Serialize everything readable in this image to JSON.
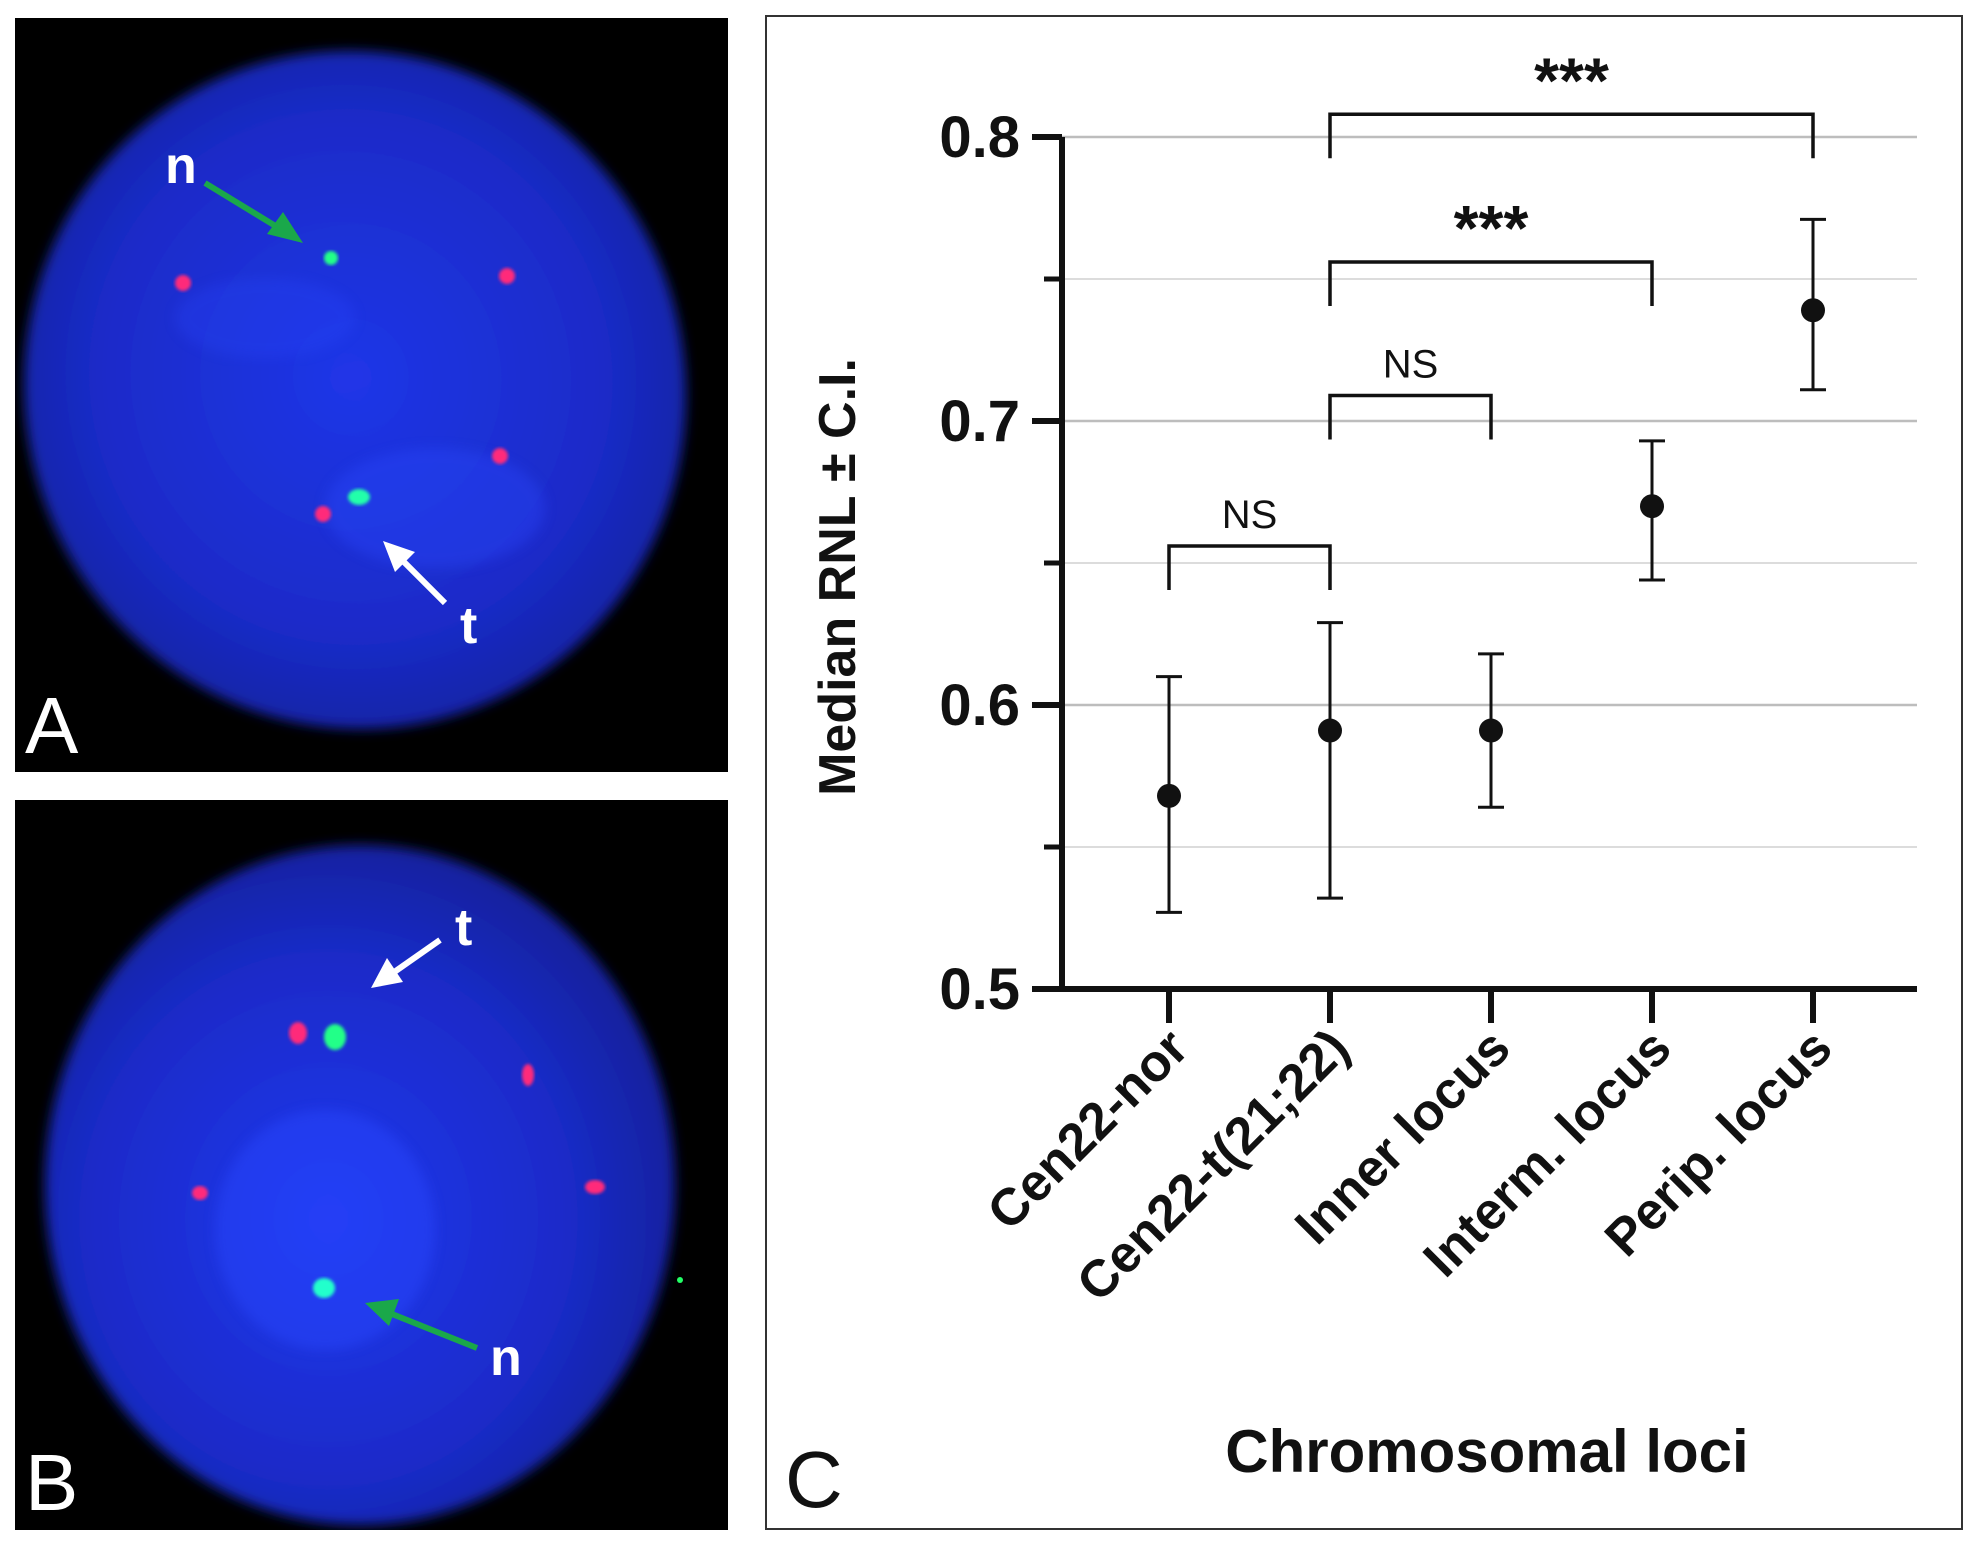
{
  "panels": {
    "a": {
      "letter": "A",
      "labels": {
        "n": "n",
        "t": "t"
      }
    },
    "b": {
      "letter": "B",
      "labels": {
        "n": "n",
        "t": "t"
      }
    },
    "c": {
      "letter": "C"
    }
  },
  "colors": {
    "nucleus": "#1a2fd6",
    "red_signal": "#ff2a7a",
    "green_signal": "#22ff88",
    "green_arrow": "#1aa84a",
    "white_arrow": "#ffffff"
  },
  "chart_data": {
    "type": "scatter",
    "categories": [
      "Cen22-nor",
      "Cen22-t(21;22)",
      "Inner locus",
      "Interm. locus",
      "Perip. locus"
    ],
    "values": [
      0.568,
      0.591,
      0.591,
      0.67,
      0.739
    ],
    "ci_low": [
      0.527,
      0.532,
      0.564,
      0.644,
      0.711
    ],
    "ci_high": [
      0.61,
      0.629,
      0.618,
      0.693,
      0.771
    ],
    "xlabel": "Chromosomal loci",
    "ylabel": "Median RNL ± C.I.",
    "ylim": [
      0.5,
      0.8
    ],
    "yticks": [
      "0.5",
      "0.6",
      "0.7",
      "0.8"
    ],
    "ytick_values": [
      0.5,
      0.6,
      0.7,
      0.8
    ],
    "grid": true,
    "comparisons": [
      {
        "from": 0,
        "to": 1,
        "label": "NS",
        "level": 0.656
      },
      {
        "from": 1,
        "to": 2,
        "label": "NS",
        "level": 0.709
      },
      {
        "from": 1,
        "to": 3,
        "label": "***",
        "level": 0.756
      },
      {
        "from": 1,
        "to": 4,
        "label": "***",
        "level": 0.808
      }
    ]
  }
}
